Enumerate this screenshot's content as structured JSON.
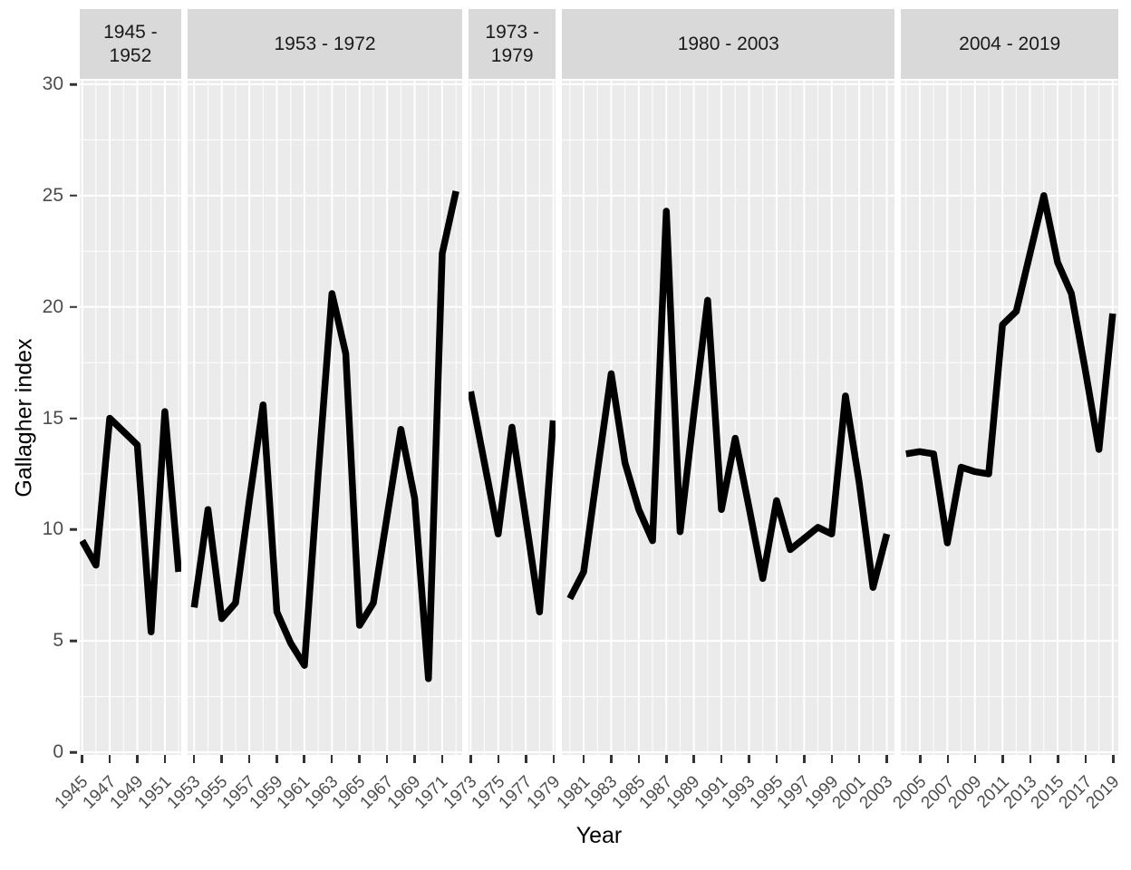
{
  "chart_data": {
    "type": "line",
    "title": "",
    "xlabel": "Year",
    "ylabel": "Gallagher index",
    "ylim": [
      0,
      30
    ],
    "y_major_ticks": [
      0,
      5,
      10,
      15,
      20,
      25,
      30
    ],
    "y_minor_ticks": [
      2.5,
      7.5,
      12.5,
      17.5,
      22.5,
      27.5
    ],
    "grid": true,
    "legend_position": "none",
    "facets": [
      {
        "label": "1945 -\n1952",
        "tick_years": [
          1945,
          1947,
          1949,
          1951
        ],
        "years": [
          1945,
          1946,
          1947,
          1948,
          1949,
          1950,
          1951,
          1952
        ],
        "values": [
          9.5,
          8.4,
          15.0,
          14.4,
          13.8,
          5.4,
          15.3,
          8.1
        ]
      },
      {
        "label": "1953 - 1972",
        "tick_years": [
          1953,
          1955,
          1957,
          1959,
          1961,
          1963,
          1965,
          1967,
          1969,
          1971
        ],
        "years": [
          1953,
          1954,
          1955,
          1956,
          1957,
          1958,
          1959,
          1960,
          1961,
          1962,
          1963,
          1964,
          1965,
          1966,
          1967,
          1968,
          1969,
          1970,
          1971,
          1972
        ],
        "values": [
          6.5,
          10.9,
          6.0,
          6.7,
          11.3,
          15.6,
          6.3,
          4.9,
          3.9,
          12.5,
          20.6,
          17.9,
          5.7,
          6.7,
          10.6,
          14.5,
          11.4,
          3.3,
          22.4,
          25.2
        ]
      },
      {
        "label": "1973 -\n1979",
        "tick_years": [
          1973,
          1975,
          1977,
          1979
        ],
        "years": [
          1973,
          1974,
          1975,
          1976,
          1977,
          1978,
          1979
        ],
        "values": [
          16.2,
          13.0,
          9.8,
          14.6,
          10.5,
          6.3,
          14.9
        ]
      },
      {
        "label": "1980 - 2003",
        "tick_years": [
          1981,
          1983,
          1985,
          1987,
          1989,
          1991,
          1993,
          1995,
          1997,
          1999,
          2001,
          2003
        ],
        "years": [
          1980,
          1981,
          1982,
          1983,
          1984,
          1985,
          1986,
          1987,
          1988,
          1989,
          1990,
          1991,
          1992,
          1993,
          1994,
          1995,
          1996,
          1997,
          1998,
          1999,
          2000,
          2001,
          2002,
          2003
        ],
        "values": [
          6.9,
          8.1,
          12.6,
          17.0,
          13.0,
          10.9,
          9.5,
          24.3,
          9.9,
          15.2,
          20.3,
          10.9,
          14.1,
          11.0,
          7.8,
          11.3,
          9.1,
          9.6,
          10.1,
          9.8,
          16.0,
          12.1,
          7.4,
          9.8
        ]
      },
      {
        "label": "2004 - 2019",
        "tick_years": [
          2005,
          2007,
          2009,
          2011,
          2013,
          2015,
          2017,
          2019
        ],
        "years": [
          2004,
          2005,
          2006,
          2007,
          2008,
          2009,
          2010,
          2011,
          2012,
          2013,
          2014,
          2015,
          2016,
          2017,
          2018,
          2019
        ],
        "values": [
          13.4,
          13.5,
          13.4,
          9.4,
          12.8,
          12.6,
          12.5,
          19.2,
          19.8,
          22.4,
          25.0,
          22.0,
          20.6,
          17.2,
          13.6,
          19.7
        ]
      }
    ],
    "colors": {
      "line": "#000000",
      "panel_bg": "#EBEBEB",
      "strip_bg": "#D9D9D9",
      "gridline": "#FFFFFF",
      "axis_text": "#4D4D4D",
      "tick_mark": "#333333",
      "axis_title": "#000000"
    }
  }
}
